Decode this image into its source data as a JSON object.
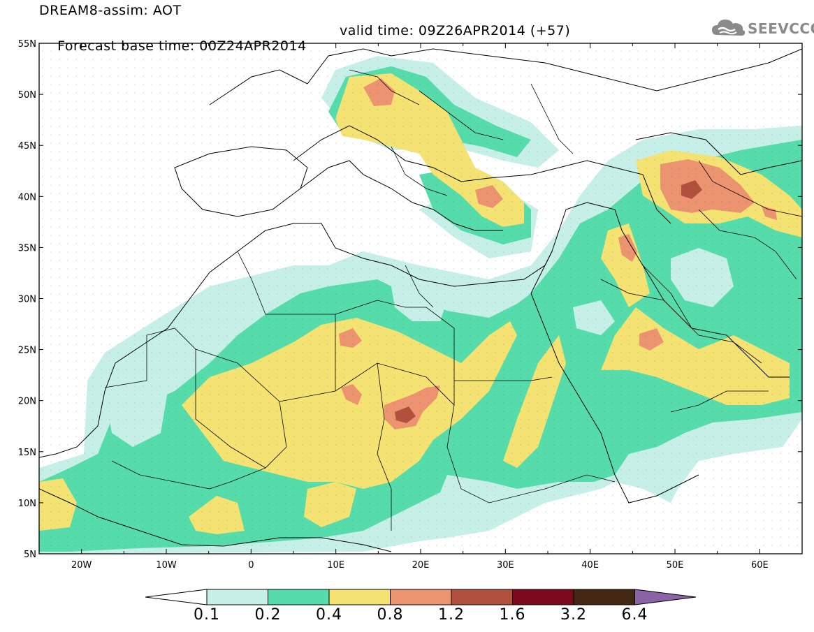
{
  "header": {
    "line1": "DREAM8-assim: AOT",
    "base": "Forecast base time: 00Z24APR2014",
    "valid": "valid time: 09Z26APR2014 (+57)"
  },
  "logo": {
    "text": "SEEVCCC",
    "icon": "cloud-icon"
  },
  "map": {
    "lat_labels": [
      "55N",
      "50N",
      "45N",
      "40N",
      "35N",
      "30N",
      "25N",
      "20N",
      "15N",
      "10N",
      "5N"
    ],
    "lon_labels": [
      "20W",
      "10W",
      "0",
      "10E",
      "20E",
      "30E",
      "40E",
      "50E",
      "60E"
    ],
    "lon_range": [
      -25,
      65
    ],
    "lat_range": [
      5,
      55
    ]
  },
  "colorbar": {
    "levels": [
      "0.1",
      "0.2",
      "0.4",
      "0.8",
      "1.2",
      "1.6",
      "3.2",
      "6.4"
    ],
    "colors": [
      "#ffffff",
      "#c6efe8",
      "#56dcaa",
      "#f4e272",
      "#ec9470",
      "#b2503e",
      "#7c0a1e",
      "#432712",
      "#8a63a8"
    ]
  }
}
